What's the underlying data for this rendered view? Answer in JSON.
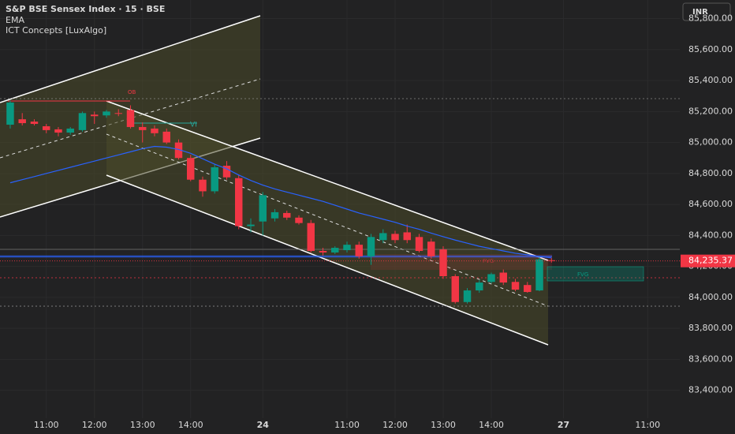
{
  "chart_data": {
    "type": "candlestick",
    "title": "S&P BSE Sensex Index · 15 · BSE",
    "indicators": [
      "EMA",
      "ICT Concepts [LuxAlgo]"
    ],
    "currency": "INR",
    "annotations": [
      "OB",
      "VI",
      "FVG",
      "FVG"
    ],
    "up_color": "#089981",
    "down_color": "#f23645",
    "x": [
      0,
      1,
      2,
      3,
      4,
      5,
      6,
      7,
      8,
      9,
      10,
      11,
      12,
      13,
      14,
      15,
      16,
      17,
      18,
      19,
      20,
      21,
      22,
      23,
      24,
      25,
      26,
      27,
      28,
      29,
      30,
      31,
      32,
      33,
      34,
      35,
      36,
      37,
      38,
      39,
      40,
      41,
      42,
      43,
      44,
      45
    ],
    "open": [
      85115,
      85150,
      85135,
      85105,
      85085,
      85064,
      85080,
      85180,
      85175,
      85190,
      85210,
      85100,
      85090,
      85070,
      85000,
      84900,
      84760,
      84685,
      84850,
      84770,
      84460,
      84490,
      84510,
      84545,
      84515,
      84480,
      84300,
      84290,
      84305,
      84340,
      84265,
      84370,
      84410,
      84420,
      84390,
      84360,
      84310,
      84137,
      83970,
      84045,
      84100,
      84160,
      84100,
      84080,
      84045,
      84240
    ],
    "high": [
      85270,
      85190,
      85150,
      85120,
      85100,
      85100,
      85200,
      85200,
      85210,
      85215,
      85240,
      85130,
      85110,
      85090,
      85020,
      84920,
      84780,
      84860,
      84880,
      84790,
      84510,
      84680,
      84570,
      84560,
      84530,
      84500,
      84320,
      84330,
      84360,
      84360,
      84410,
      84440,
      84430,
      84470,
      84410,
      84380,
      84330,
      84150,
      84060,
      84110,
      84160,
      84180,
      84120,
      84100,
      84260,
      84255
    ],
    "low": [
      85090,
      85110,
      85110,
      85060,
      85040,
      85050,
      85070,
      85120,
      85160,
      85170,
      85090,
      85000,
      85040,
      84990,
      84890,
      84750,
      84650,
      84670,
      84760,
      84440,
      84420,
      84400,
      84490,
      84500,
      84470,
      84290,
      84270,
      84280,
      84290,
      84250,
      84210,
      84350,
      84350,
      84350,
      84290,
      84250,
      84120,
      83960,
      83960,
      84030,
      84090,
      84080,
      84040,
      84030,
      84040,
      84225
    ],
    "close": [
      85258,
      85125,
      85120,
      85080,
      85064,
      85090,
      85190,
      85170,
      85200,
      85185,
      85100,
      85080,
      85060,
      85000,
      84900,
      84760,
      84685,
      84840,
      84775,
      84460,
      84470,
      84660,
      84550,
      84515,
      84480,
      84300,
      84290,
      84320,
      84340,
      84265,
      84390,
      84415,
      84370,
      84370,
      84300,
      84265,
      84137,
      83970,
      84045,
      84096,
      84150,
      84096,
      84050,
      84035,
      84245,
      84235.37
    ],
    "series": [
      {
        "name": "EMA",
        "color": "#2962ff",
        "values": [
          84740,
          84760,
          84780,
          84800,
          84820,
          84840,
          84860,
          84880,
          84900,
          84920,
          84940,
          84960,
          84975,
          84970,
          84955,
          84930,
          84895,
          84860,
          84830,
          84790,
          84755,
          84725,
          84700,
          84680,
          84660,
          84640,
          84620,
          84595,
          84570,
          84545,
          84525,
          84505,
          84485,
          84460,
          84440,
          84415,
          84392,
          84370,
          84350,
          84330,
          84315,
          84300,
          84285,
          84275,
          84264,
          84255
        ]
      }
    ],
    "last_price": {
      "value": 84235.37,
      "label": "84,235.37"
    },
    "xlim": [
      -0.85,
      55.67
    ],
    "xticks": [
      {
        "value": 3,
        "label": "11:00"
      },
      {
        "value": 7,
        "label": "12:00"
      },
      {
        "value": 11,
        "label": "13:00"
      },
      {
        "value": 15,
        "label": "14:00"
      },
      {
        "value": 21,
        "label": "24"
      },
      {
        "value": 28,
        "label": "11:00"
      },
      {
        "value": 32,
        "label": "12:00"
      },
      {
        "value": 36,
        "label": "13:00"
      },
      {
        "value": 40,
        "label": "14:00"
      },
      {
        "value": 46,
        "label": "27"
      },
      {
        "value": 53,
        "label": "11:00"
      }
    ],
    "ylim": [
      83220,
      85920
    ],
    "yticks": [
      {
        "value": 83400,
        "label": "83,400.00"
      },
      {
        "value": 83600,
        "label": "83,600.00"
      },
      {
        "value": 83800,
        "label": "83,800.00"
      },
      {
        "value": 84000,
        "label": "84,000.00"
      },
      {
        "value": 84200,
        "label": "84,200.00"
      },
      {
        "value": 84400,
        "label": "84,400.00"
      },
      {
        "value": 84600,
        "label": "84,600.00"
      },
      {
        "value": 84800,
        "label": "84,800.00"
      },
      {
        "value": 85000,
        "label": "85,000.00"
      },
      {
        "value": 85200,
        "label": "85,200.00"
      },
      {
        "value": 85400,
        "label": "85,400.00"
      },
      {
        "value": 85600,
        "label": "85,600.00"
      },
      {
        "value": 85800,
        "label": "85,800.00"
      }
    ],
    "grid": true
  }
}
